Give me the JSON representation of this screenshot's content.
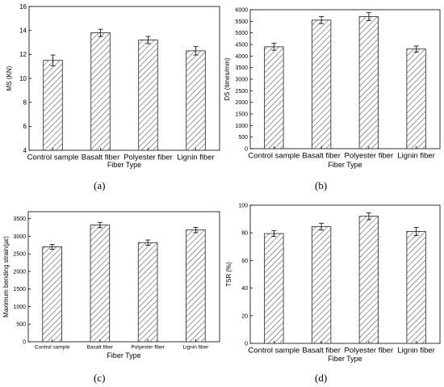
{
  "chart_data": [
    {
      "panel": "(a)",
      "type": "bar",
      "categories": [
        "Control sample",
        "Basalt fiber",
        "Polyester fiber",
        "Lignin fiber"
      ],
      "values": [
        11.5,
        13.8,
        13.2,
        12.3
      ],
      "errors": [
        0.45,
        0.3,
        0.3,
        0.35
      ],
      "xlabel": "Fiber Type",
      "ylabel": "MS (KN)",
      "ylim": [
        4,
        16
      ],
      "yticks": [
        4,
        6,
        8,
        10,
        12,
        14,
        16
      ],
      "bar_fill": "hatched"
    },
    {
      "panel": "(b)",
      "type": "bar",
      "categories": [
        "Control sample",
        "Basalt fiber",
        "Polyester fiber",
        "Lignin fiber"
      ],
      "values": [
        4400,
        5550,
        5700,
        4300
      ],
      "errors": [
        150,
        150,
        170,
        130
      ],
      "xlabel": "Fiber Type",
      "ylabel": "DS (times/mm)",
      "ylim": [
        0,
        6000
      ],
      "yticks": [
        0,
        500,
        1000,
        1500,
        2000,
        2500,
        3000,
        3500,
        4000,
        4500,
        5000,
        5500,
        6000
      ],
      "bar_fill": "hatched"
    },
    {
      "panel": "(c)",
      "type": "bar",
      "categories": [
        "Control sample",
        "Basalt fiber",
        "Polyester fiber",
        "Lignin fiber"
      ],
      "values": [
        2700,
        3320,
        2820,
        3180
      ],
      "errors": [
        70,
        75,
        75,
        75
      ],
      "xlabel": "Fiber Type",
      "ylabel": "Maximum bending strain(με)",
      "ylim": [
        0,
        3700
      ],
      "yticks": [
        0,
        500,
        1000,
        1500,
        2000,
        2500,
        3000,
        3500
      ],
      "bar_fill": "hatched"
    },
    {
      "panel": "(d)",
      "type": "bar",
      "categories": [
        "Control sample",
        "Basalt fiber",
        "Polyester fiber",
        "Lignin fiber"
      ],
      "values": [
        79.5,
        84.5,
        92.0,
        81.0
      ],
      "errors": [
        2.0,
        2.5,
        2.5,
        3.0
      ],
      "xlabel": "Fiber Type",
      "ylabel": "TSR (%)",
      "ylim": [
        0,
        100
      ],
      "yticks": [
        0,
        20,
        40,
        60,
        80,
        100
      ],
      "bar_fill": "hatched"
    }
  ],
  "colors": {
    "axis": "#000000",
    "bar_fill": "#ffffff",
    "hatch": "#555555"
  }
}
